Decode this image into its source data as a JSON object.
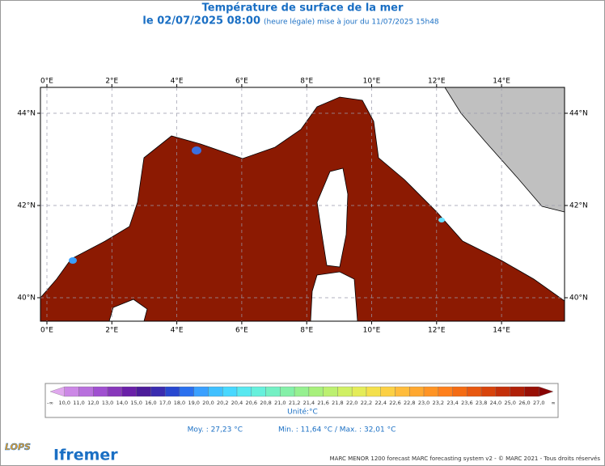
{
  "header": {
    "title": "Température de surface de la mer",
    "date": "le 02/07/2025 08:00",
    "update": "(heure légale) mise à jour du 11/07/2025 15h48"
  },
  "map": {
    "lon_labels": [
      "0°E",
      "2°E",
      "4°E",
      "6°E",
      "8°E",
      "10°E",
      "12°E",
      "14°E"
    ],
    "lat_labels": [
      "44°N",
      "42°N",
      "40°N"
    ]
  },
  "colorbar": {
    "labels": [
      "-∞",
      "10,0",
      "11,0",
      "12,0",
      "13,0",
      "14,0",
      "15,0",
      "16,0",
      "17,0",
      "18,0",
      "19,0",
      "20,0",
      "20,2",
      "20,4",
      "20,6",
      "20,8",
      "21,0",
      "21,2",
      "21,4",
      "21,6",
      "21,8",
      "22,0",
      "22,2",
      "22,4",
      "22,6",
      "22,8",
      "23,0",
      "23,2",
      "23,4",
      "23,6",
      "23,8",
      "24,0",
      "25,0",
      "26,0",
      "27,0",
      "∞"
    ],
    "colors": [
      "#e0a8ee",
      "#cc88e6",
      "#b870dd",
      "#a050d0",
      "#8838bb",
      "#6a20a8",
      "#4c1c9a",
      "#3a2cb0",
      "#2848d0",
      "#2a70ee",
      "#3aa0ff",
      "#40c0ff",
      "#48d8ff",
      "#58e8f0",
      "#66f0dc",
      "#74f0c4",
      "#84f0a8",
      "#96f090",
      "#a8f07c",
      "#bcf070",
      "#d0f064",
      "#e4ec58",
      "#f4e04c",
      "#fcd044",
      "#ffbc3c",
      "#ffa830",
      "#ff9424",
      "#ff801c",
      "#f46c14",
      "#e85810",
      "#d8440c",
      "#c4300a",
      "#b02008",
      "#981006",
      "#880404"
    ],
    "unit": "Unité:°C"
  },
  "stats": {
    "mean": "Moy. : 27,23 °C",
    "minmax": "Min. : 11,64 °C / Max. : 32,01 °C"
  },
  "footer": {
    "logo_lops": "LOPS",
    "logo_ifremer": "Ifremer",
    "credits": "MARC MENOR 1200 forecast  MARC forecasting system v2 - © MARC 2021 - Tous droits réservés"
  }
}
